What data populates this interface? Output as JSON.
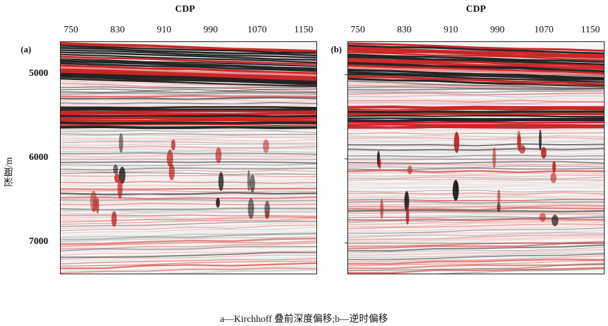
{
  "panel_a": {
    "axis_title": "CDP",
    "letter": "(a)",
    "cdp_ticks": [
      "750",
      "830",
      "910",
      "990",
      "1070",
      "1150"
    ]
  },
  "panel_b": {
    "axis_title": "CDP",
    "letter": "(b)",
    "cdp_ticks": [
      "750",
      "830",
      "910",
      "990",
      "1070",
      "1150"
    ]
  },
  "depth_axis": {
    "label": "深度/m",
    "ticks": [
      "5000",
      "6000",
      "7000"
    ]
  },
  "caption": "a—Kirchhoff 叠前深度偏移;b—逆时偏移"
}
